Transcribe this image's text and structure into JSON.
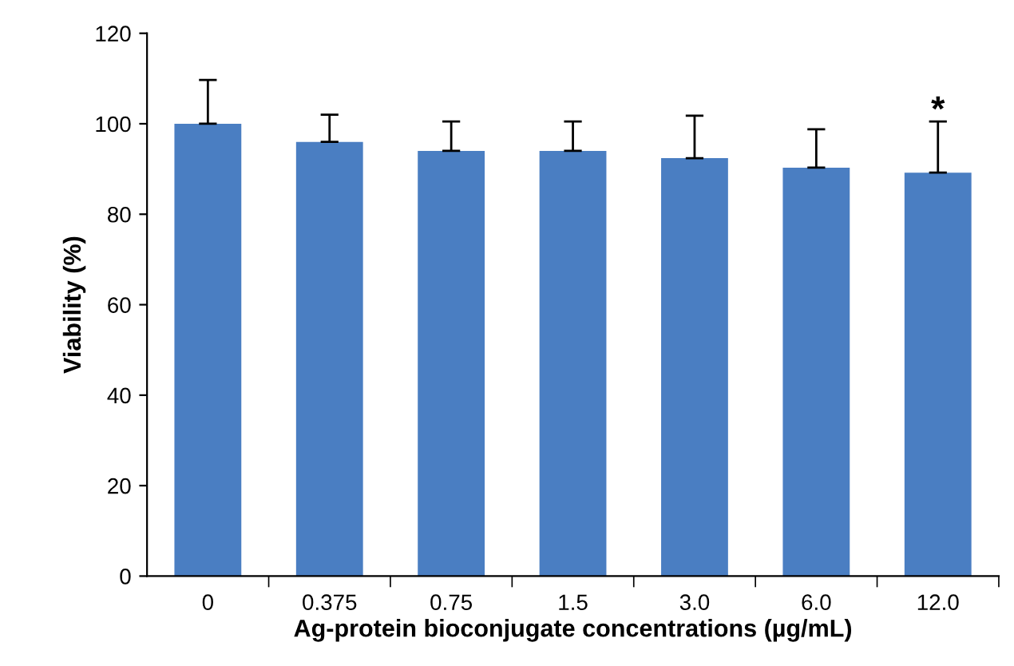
{
  "chart_data": {
    "type": "bar",
    "xlabel": "Ag-protein bioconjugate concentrations (µg/mL)",
    "ylabel": "Viability (%)",
    "categories": [
      "0",
      "0.375",
      "0.75",
      "1.5",
      "3.0",
      "6.0",
      "12.0"
    ],
    "values": [
      100,
      96,
      94,
      94,
      92.4,
      90.3,
      89.2
    ],
    "errors": [
      9.7,
      6,
      6.5,
      6.5,
      9.4,
      8.5,
      11.3
    ],
    "color": "#4a7ec2",
    "ylim": [
      0,
      120
    ],
    "yticks": [
      0,
      20,
      40,
      60,
      80,
      100,
      120
    ],
    "grid": false,
    "legend": false,
    "annotations": [
      "*"
    ]
  }
}
